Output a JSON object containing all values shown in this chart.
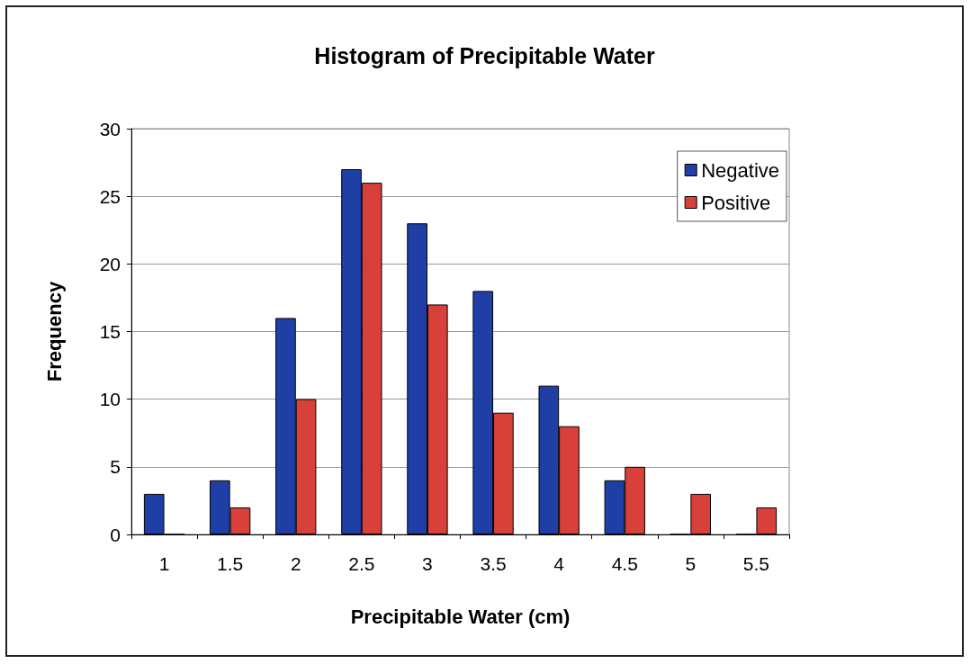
{
  "chart_data": {
    "type": "bar",
    "title": "Histogram of Precipitable Water",
    "xlabel": "Precipitable Water (cm)",
    "ylabel": "Frequency",
    "categories": [
      "1",
      "1.5",
      "2",
      "2.5",
      "3",
      "3.5",
      "4",
      "4.5",
      "5",
      "5.5"
    ],
    "series": [
      {
        "name": "Negative",
        "color": "#1f3fa6",
        "values": [
          3,
          4,
          16,
          27,
          23,
          18,
          11,
          4,
          0,
          0
        ]
      },
      {
        "name": "Positive",
        "color": "#d8413a",
        "values": [
          0,
          2,
          10,
          26,
          17,
          9,
          8,
          5,
          3,
          2
        ]
      }
    ],
    "ylim": [
      0,
      30
    ],
    "yticks": [
      0,
      5,
      10,
      15,
      20,
      25,
      30
    ],
    "grid": "y",
    "legend": "top right"
  }
}
